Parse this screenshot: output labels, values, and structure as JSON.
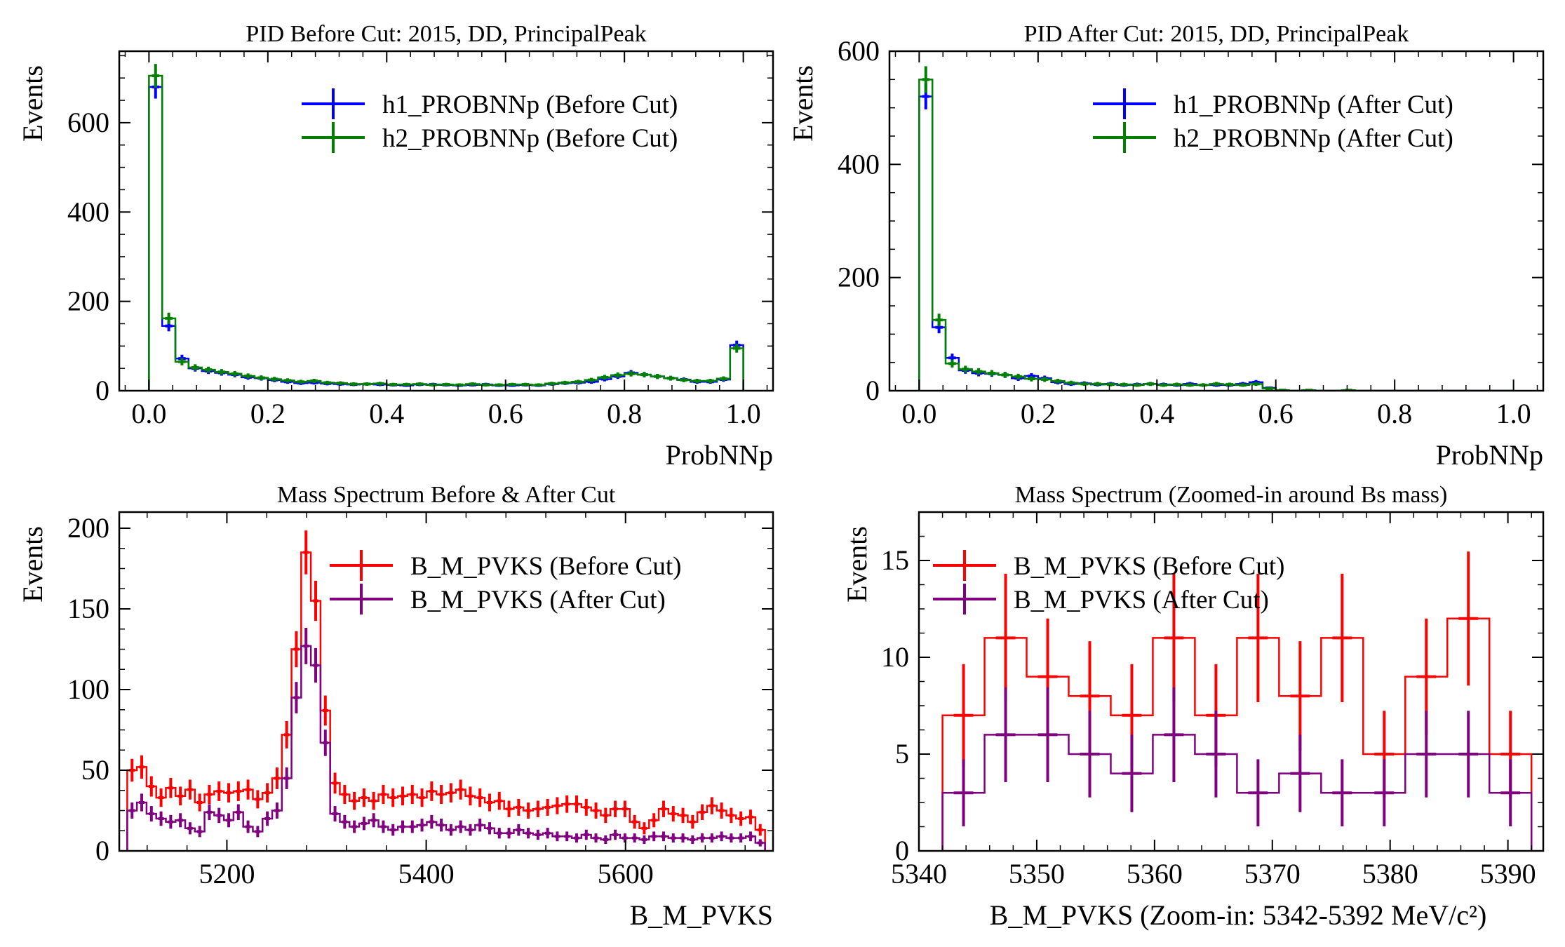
{
  "colors": {
    "h1": "#0000ff",
    "h2": "#008000",
    "before": "#ff0000",
    "after": "#800080"
  },
  "chart_data": [
    {
      "type": "histogram",
      "title": "PID Before Cut: 2015, DD, PrincipalPeak",
      "xlabel": "ProbNNp",
      "ylabel": "Events",
      "xlim": [
        -0.05,
        1.05
      ],
      "ylim": [
        0,
        760
      ],
      "xticks": [
        "0.0",
        "0.2",
        "0.4",
        "0.6",
        "0.8",
        "1.0"
      ],
      "yticks": [
        "0",
        "200",
        "400",
        "600"
      ],
      "legend_position": "top-right",
      "bin_edges_range": [
        0.0,
        1.0
      ],
      "series": [
        {
          "name": "h1_PROBNNp (Before Cut)",
          "color": "#0000ff",
          "errorbars": true,
          "values": [
            680,
            145,
            72,
            50,
            44,
            40,
            36,
            30,
            28,
            24,
            20,
            17,
            18,
            16,
            15,
            14,
            15,
            14,
            13,
            12,
            14,
            14,
            13,
            12,
            13,
            14,
            12,
            12,
            13,
            12,
            15,
            17,
            18,
            20,
            26,
            32,
            40,
            36,
            32,
            28,
            25,
            20,
            20,
            25,
            102
          ]
        },
        {
          "name": "h2_PROBNNp (Before Cut)",
          "color": "#008000",
          "errorbars": true,
          "step": true,
          "values": [
            705,
            162,
            65,
            52,
            47,
            42,
            38,
            33,
            29,
            26,
            23,
            20,
            22,
            18,
            17,
            15,
            15,
            16,
            14,
            14,
            15,
            13,
            14,
            13,
            15,
            13,
            13,
            14,
            14,
            13,
            16,
            18,
            20,
            24,
            30,
            35,
            38,
            36,
            32,
            28,
            24,
            22,
            22,
            27,
            95
          ]
        }
      ]
    },
    {
      "type": "histogram",
      "title": "PID After Cut: 2015, DD, PrincipalPeak",
      "xlabel": "ProbNNp",
      "ylabel": "Events",
      "xlim": [
        -0.05,
        1.05
      ],
      "ylim": [
        0,
        600
      ],
      "xticks": [
        "0.0",
        "0.2",
        "0.4",
        "0.6",
        "0.8",
        "1.0"
      ],
      "yticks": [
        "0",
        "200",
        "400",
        "600"
      ],
      "legend_position": "top-right",
      "bin_edges_range": [
        0.0,
        1.0
      ],
      "series": [
        {
          "name": "h1_PROBNNp (After Cut)",
          "color": "#0000ff",
          "errorbars": true,
          "values": [
            520,
            112,
            58,
            36,
            31,
            30,
            28,
            22,
            26,
            22,
            15,
            12,
            13,
            11,
            12,
            10,
            11,
            12,
            11,
            10,
            12,
            10,
            10,
            10,
            12,
            15,
            5,
            0,
            0,
            0,
            0,
            0,
            0,
            0,
            0,
            0,
            0,
            0,
            0,
            0,
            0,
            0,
            0,
            0,
            0
          ]
        },
        {
          "name": "h2_PROBNNp (After Cut)",
          "color": "#008000",
          "errorbars": true,
          "step": true,
          "values": [
            550,
            125,
            48,
            38,
            34,
            31,
            28,
            25,
            21,
            20,
            17,
            14,
            12,
            12,
            11,
            11,
            10,
            12,
            10,
            11,
            10,
            10,
            12,
            11,
            10,
            12,
            4,
            1,
            0,
            1,
            0,
            0,
            1,
            0,
            0,
            0,
            0,
            0,
            0,
            0,
            0,
            0,
            0,
            0,
            0
          ]
        }
      ]
    },
    {
      "type": "histogram",
      "title": "Mass Spectrum Before & After Cut",
      "xlabel": "B_M_PVKS",
      "ylabel": "Events",
      "xlim": [
        5092,
        5748
      ],
      "ylim": [
        0,
        210
      ],
      "xticks": [
        "5200",
        "5400",
        "5600"
      ],
      "yticks": [
        "0",
        "50",
        "100",
        "150",
        "200"
      ],
      "legend_position": "top-right",
      "bin_edges_range": [
        5100,
        5740
      ],
      "series": [
        {
          "name": "B_M_PVKS (Before Cut)",
          "color": "#ff0000",
          "errorbars": true,
          "step": true,
          "values": [
            50,
            52,
            40,
            33,
            39,
            34,
            38,
            30,
            35,
            37,
            36,
            37,
            38,
            32,
            36,
            45,
            72,
            125,
            185,
            155,
            87,
            42,
            35,
            31,
            33,
            31,
            35,
            33,
            34,
            35,
            33,
            37,
            35,
            36,
            38,
            34,
            33,
            30,
            31,
            26,
            27,
            25,
            26,
            27,
            28,
            29,
            29,
            27,
            25,
            22,
            26,
            26,
            18,
            14,
            19,
            26,
            23,
            22,
            18,
            24,
            28,
            25,
            22,
            20,
            21,
            13
          ]
        },
        {
          "name": "B_M_PVKS (After Cut)",
          "color": "#800080",
          "errorbars": true,
          "step": true,
          "values": [
            25,
            30,
            23,
            20,
            18,
            19,
            14,
            12,
            24,
            22,
            19,
            24,
            15,
            12,
            20,
            25,
            45,
            95,
            127,
            115,
            67,
            23,
            18,
            15,
            17,
            19,
            15,
            13,
            15,
            15,
            16,
            18,
            16,
            13,
            15,
            13,
            16,
            14,
            11,
            11,
            13,
            11,
            10,
            11,
            9,
            9,
            8,
            10,
            8,
            7,
            10,
            8,
            8,
            7,
            9,
            9,
            8,
            8,
            7,
            8,
            8,
            9,
            8,
            8,
            9,
            5
          ]
        }
      ]
    },
    {
      "type": "histogram",
      "title": "Mass Spectrum (Zoomed-in around Bs mass)",
      "xlabel": "B_M_PVKS (Zoom-in: 5342-5392 MeV/c²)",
      "ylabel": "Events",
      "xlim": [
        5340,
        5393
      ],
      "ylim": [
        0,
        17.5
      ],
      "xticks": [
        "5340",
        "5350",
        "5360",
        "5370",
        "5380",
        "5390"
      ],
      "yticks": [
        "0",
        "5",
        "10",
        "15"
      ],
      "legend_position": "top-left",
      "bin_edges_range": [
        5342,
        5392
      ],
      "series": [
        {
          "name": "B_M_PVKS (Before Cut)",
          "color": "#ff0000",
          "errorbars": true,
          "step": true,
          "values": [
            7,
            11,
            9,
            8,
            7,
            11,
            7,
            11,
            8,
            11,
            5,
            9,
            12,
            5
          ]
        },
        {
          "name": "B_M_PVKS (After Cut)",
          "color": "#800080",
          "errorbars": true,
          "step": true,
          "values": [
            3,
            6,
            6,
            5,
            4,
            6,
            5,
            3,
            4,
            3,
            3,
            5,
            5,
            3
          ]
        }
      ]
    }
  ]
}
